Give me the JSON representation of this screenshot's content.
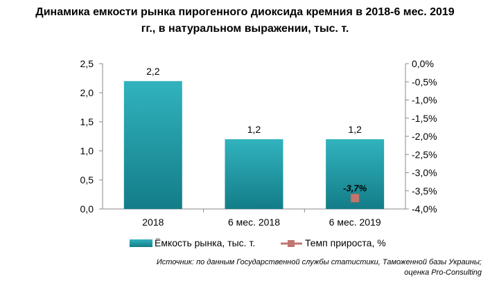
{
  "title_line1": "Динамика емкости рынка пирогенного диоксида кремния в 2018-6 мес. 2019",
  "title_line2": "гг., в натуральном выражении, тыс. т.",
  "source_line1": "Источник: по данным Государственной службы статистики, Таможенной базы Украины;",
  "source_line2": "оценка Pro-Consulting",
  "chart_data": {
    "type": "bar",
    "categories": [
      "2018",
      "6 мес. 2018",
      "6 мес. 2019"
    ],
    "series": [
      {
        "name": "Ёмкость рынка, тыс. т.",
        "type": "bar",
        "axis": "left",
        "values": [
          2.2,
          1.2,
          1.2
        ],
        "labels": [
          "2,2",
          "1,2",
          "1,2"
        ],
        "color": "#1f9aa6"
      },
      {
        "name": "Темп прироста, %",
        "type": "line",
        "axis": "right",
        "values": [
          null,
          null,
          -3.7
        ],
        "labels": [
          null,
          null,
          "-3,7%"
        ],
        "color": "#c0766e"
      }
    ],
    "ylim_left": [
      0,
      2.5
    ],
    "yticks_left": [
      "0,0",
      "0,5",
      "1,0",
      "1,5",
      "2,0",
      "2,5"
    ],
    "ylim_right": [
      -4.0,
      0.0
    ],
    "yticks_right": [
      "0,0%",
      "-0,5%",
      "-1,0%",
      "-1,5%",
      "-2,0%",
      "-2,5%",
      "-3,0%",
      "-3,5%",
      "-4,0%"
    ],
    "grid": false,
    "legend": "bottom"
  }
}
